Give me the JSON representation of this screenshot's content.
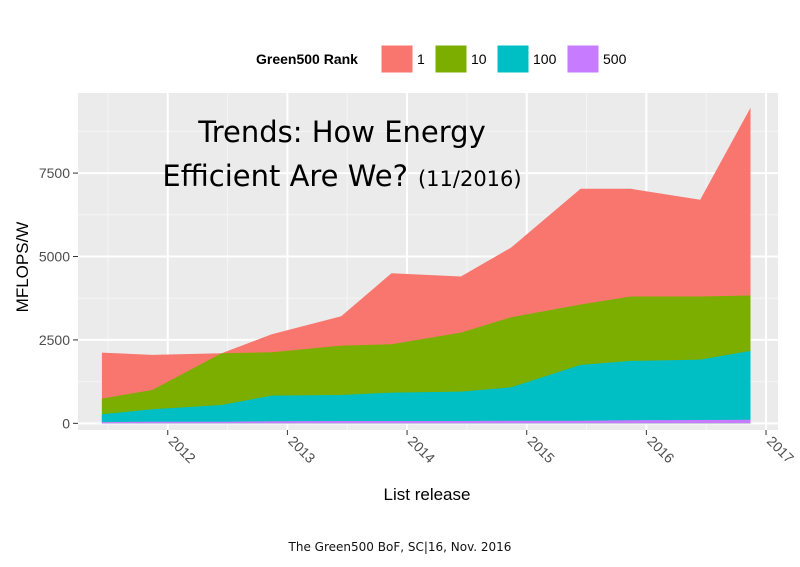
{
  "chart_data": {
    "type": "area",
    "stacked": true,
    "title": "Trends:  How Energy",
    "title_line2": "Efficient Are We?",
    "title_suffix": "(11/2016)",
    "xlabel": "List release",
    "ylabel": "MFLOPS/W",
    "xlim": [
      2011.25,
      2017.1
    ],
    "ylim": [
      -200,
      9900
    ],
    "x_ticks": [
      2012,
      2013,
      2014,
      2015,
      2016,
      2017
    ],
    "y_ticks": [
      0,
      2500,
      5000,
      7500
    ],
    "legend_title": "Green500 Rank",
    "legend_position": "top",
    "grid": true,
    "panel_background": "#ebebeb",
    "x": [
      2011.45,
      2011.87,
      2012.45,
      2012.87,
      2013.45,
      2013.87,
      2014.45,
      2014.87,
      2015.45,
      2015.87,
      2016.45,
      2016.87
    ],
    "series": [
      {
        "name": "500",
        "color": "#c77cff",
        "values": [
          40,
          45,
          50,
          60,
          70,
          70,
          70,
          75,
          80,
          90,
          100,
          110
        ]
      },
      {
        "name": "100",
        "color": "#00bfc4",
        "values": [
          270,
          420,
          550,
          830,
          850,
          920,
          950,
          1080,
          1750,
          1870,
          1910,
          2170
        ]
      },
      {
        "name": "10",
        "color": "#7cae00",
        "values": [
          740,
          1000,
          2100,
          2130,
          2330,
          2370,
          2720,
          3180,
          3560,
          3800,
          3800,
          3830
        ]
      },
      {
        "name": "1",
        "color": "#f8766d",
        "values": [
          2120,
          2050,
          2100,
          2670,
          3210,
          4500,
          4400,
          5270,
          7030,
          7030,
          6700,
          9460
        ]
      }
    ],
    "legend_order": [
      "1",
      "10",
      "100",
      "500"
    ],
    "caption": "The Green500 BoF, SC|16, Nov. 2016"
  }
}
